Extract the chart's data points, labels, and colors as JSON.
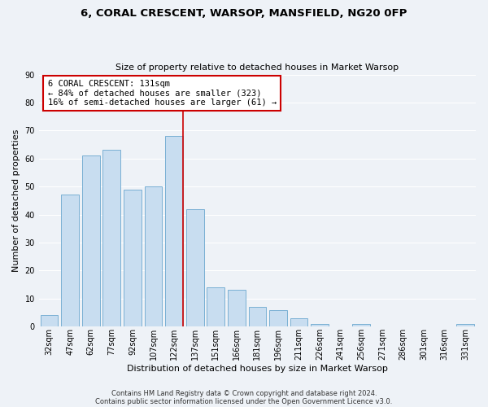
{
  "title": "6, CORAL CRESCENT, WARSOP, MANSFIELD, NG20 0FP",
  "subtitle": "Size of property relative to detached houses in Market Warsop",
  "xlabel": "Distribution of detached houses by size in Market Warsop",
  "ylabel": "Number of detached properties",
  "bar_color": "#c8ddf0",
  "bar_edge_color": "#7ab0d4",
  "categories": [
    "32sqm",
    "47sqm",
    "62sqm",
    "77sqm",
    "92sqm",
    "107sqm",
    "122sqm",
    "137sqm",
    "151sqm",
    "166sqm",
    "181sqm",
    "196sqm",
    "211sqm",
    "226sqm",
    "241sqm",
    "256sqm",
    "271sqm",
    "286sqm",
    "301sqm",
    "316sqm",
    "331sqm"
  ],
  "values": [
    4,
    47,
    61,
    63,
    49,
    50,
    68,
    42,
    14,
    13,
    7,
    6,
    3,
    1,
    0,
    1,
    0,
    0,
    0,
    0,
    1
  ],
  "ylim": [
    0,
    90
  ],
  "yticks": [
    0,
    10,
    20,
    30,
    40,
    50,
    60,
    70,
    80,
    90
  ],
  "marker_index": 6,
  "marker_color": "#cc0000",
  "annotation_title": "6 CORAL CRESCENT: 131sqm",
  "annotation_line1": "← 84% of detached houses are smaller (323)",
  "annotation_line2": "16% of semi-detached houses are larger (61) →",
  "annotation_box_color": "#ffffff",
  "annotation_box_edge": "#cc0000",
  "footer1": "Contains HM Land Registry data © Crown copyright and database right 2024.",
  "footer2": "Contains public sector information licensed under the Open Government Licence v3.0.",
  "background_color": "#eef2f7",
  "grid_color": "#ffffff",
  "title_fontsize": 9.5,
  "subtitle_fontsize": 8,
  "xlabel_fontsize": 8,
  "ylabel_fontsize": 8,
  "tick_fontsize": 7,
  "footer_fontsize": 6,
  "annotation_fontsize": 7.5
}
